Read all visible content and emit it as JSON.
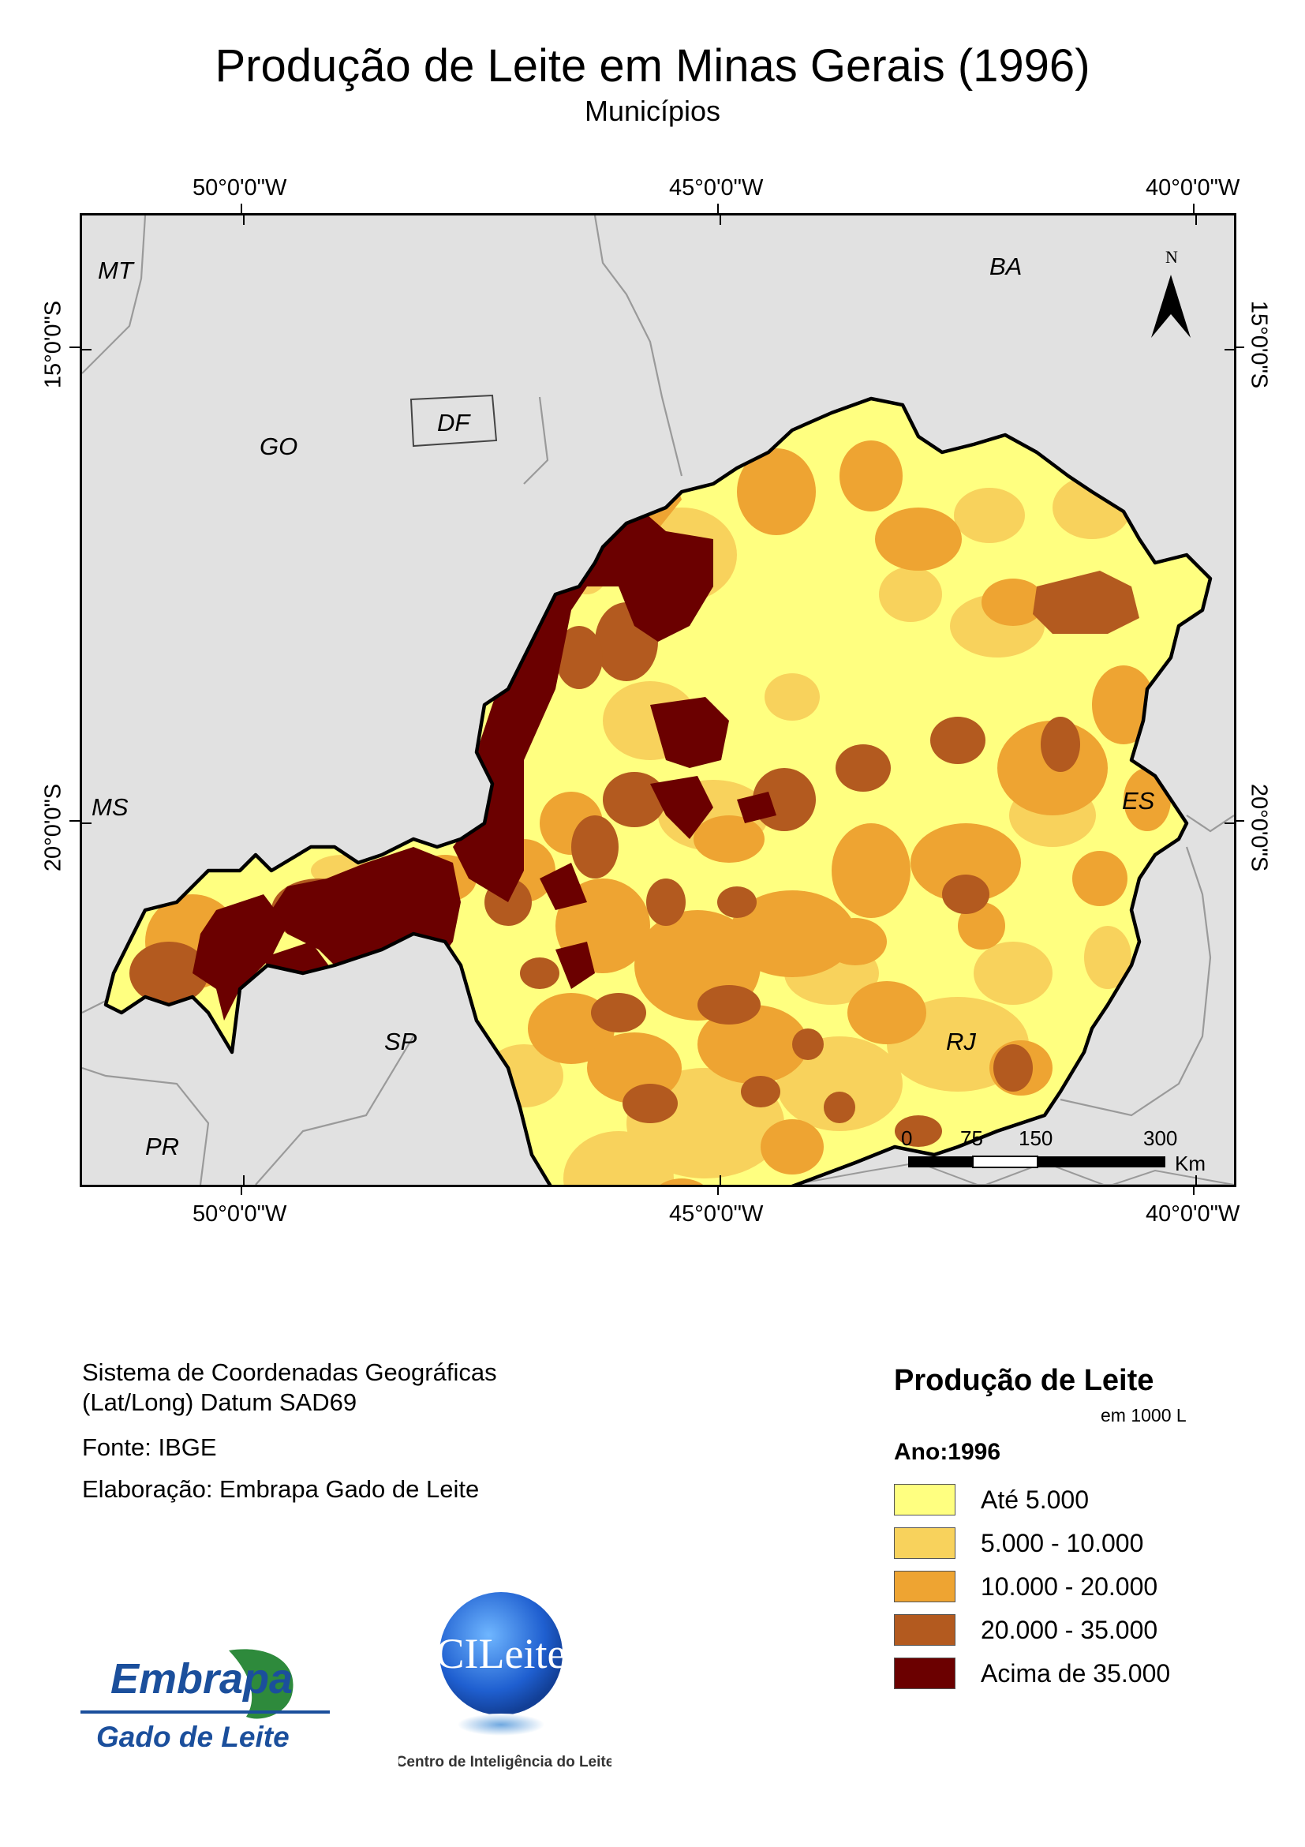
{
  "title": "Produção de Leite em Minas Gerais (1996)",
  "subtitle": "Municípios",
  "graticule": {
    "top": [
      "50°0'0\"W",
      "45°0'0\"W",
      "40°0'0\"W"
    ],
    "bottom": [
      "50°0'0\"W",
      "45°0'0\"W",
      "40°0'0\"W"
    ],
    "left": [
      "15°0'0\"S",
      "20°0'0\"S"
    ],
    "right": [
      "15°0'0\"S",
      "20°0'0\"S"
    ]
  },
  "state_labels": [
    "MT",
    "BA",
    "GO",
    "DF",
    "MS",
    "ES",
    "SP",
    "RJ",
    "PR"
  ],
  "north_arrow": {
    "label": "N",
    "icon": "north-arrow-icon"
  },
  "scale_bar": {
    "ticks": [
      "0",
      "75",
      "150",
      "300"
    ],
    "unit": "Km"
  },
  "info": {
    "crs_line1": "Sistema de Coordenadas Geográficas",
    "crs_line2": "(Lat/Long) Datum SAD69",
    "source": "Fonte: IBGE",
    "author": "Elaboração: Embrapa Gado de Leite"
  },
  "legend": {
    "title": "Produção de Leite",
    "unit": "em 1000 L",
    "year": "Ano:1996",
    "classes": [
      {
        "label": "Até 5.000",
        "color": "#ffff80"
      },
      {
        "label": "5.000 - 10.000",
        "color": "#f8d25c"
      },
      {
        "label": "10.000 - 20.000",
        "color": "#eea432"
      },
      {
        "label": "20.000 - 35.000",
        "color": "#b35a1f"
      },
      {
        "label": "Acima de 35.000",
        "color": "#6b0000"
      }
    ]
  },
  "logos": {
    "embrapa_word": "Embrapa",
    "embrapa_sub": "Gado de Leite",
    "cileite_word": "CILeite",
    "cileite_sub": "Centro de Inteligência do Leite"
  },
  "colors": {
    "background_land": "#e1e1e1",
    "state_border": "#9a9a9a",
    "mg_border": "#000000"
  }
}
